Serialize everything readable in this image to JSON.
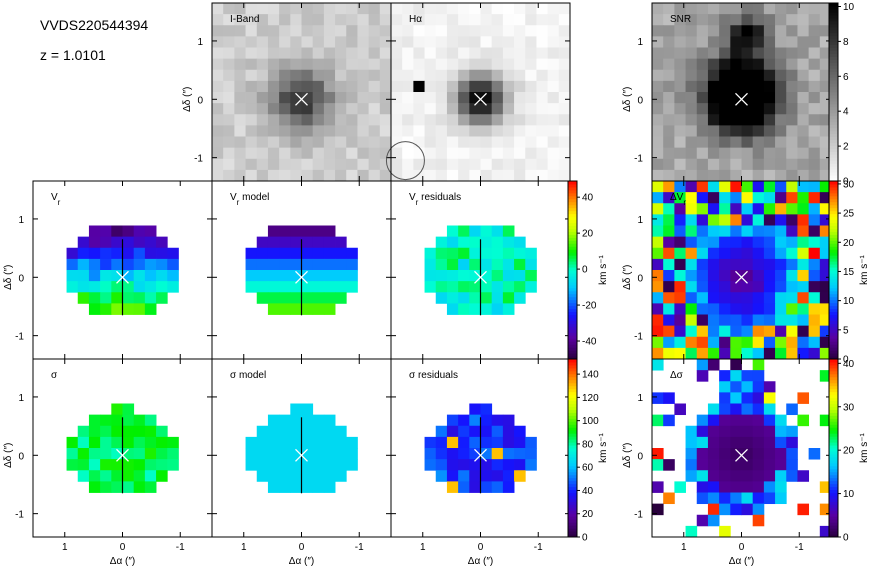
{
  "header": {
    "object": "VVDS220544394",
    "redshift": "z = 1.0101"
  },
  "axes": {
    "xlim": [
      1.55,
      -1.55
    ],
    "ylim": [
      -1.4,
      1.65
    ],
    "xticks": [
      1,
      0,
      -1
    ],
    "yticks": [
      1,
      0,
      -1
    ],
    "xlabel": "Δα (″)",
    "ylabel": "Δδ (″)"
  },
  "panels": [
    {
      "label": "I-Band"
    },
    {
      "label": "Hα"
    },
    {
      "label": "SNR"
    },
    {
      "label": "V",
      "sub": "r"
    },
    {
      "label": "V",
      "sub": "r",
      "suffix": " model"
    },
    {
      "label": "V",
      "sub": "r",
      "suffix": " residuals"
    },
    {
      "label": "ΔV",
      "sub": "r"
    },
    {
      "label": "σ"
    },
    {
      "label": "σ",
      "suffix": " model"
    },
    {
      "label": "σ",
      "suffix": " residuals"
    },
    {
      "label": "Δσ"
    }
  ],
  "colorbars": [
    {
      "lim": [
        -50,
        49
      ],
      "ticks": [
        40,
        20,
        0,
        -20,
        -40
      ],
      "unit": "km s⁻¹"
    },
    {
      "lim": [
        0,
        153
      ],
      "ticks": [
        140,
        120,
        100,
        80,
        60,
        40,
        20,
        0
      ],
      "unit": "km s⁻¹"
    },
    {
      "lim": [
        0,
        10.2
      ],
      "ticks": [
        10,
        8,
        6,
        4,
        2,
        0
      ]
    },
    {
      "lim": [
        0,
        30.5
      ],
      "ticks": [
        30,
        25,
        20,
        15,
        10,
        5,
        0
      ],
      "unit": "km s⁻¹"
    },
    {
      "lim": [
        0,
        41
      ],
      "ticks": [
        40,
        30,
        20,
        10,
        0
      ],
      "unit": "km s⁻¹"
    }
  ]
}
